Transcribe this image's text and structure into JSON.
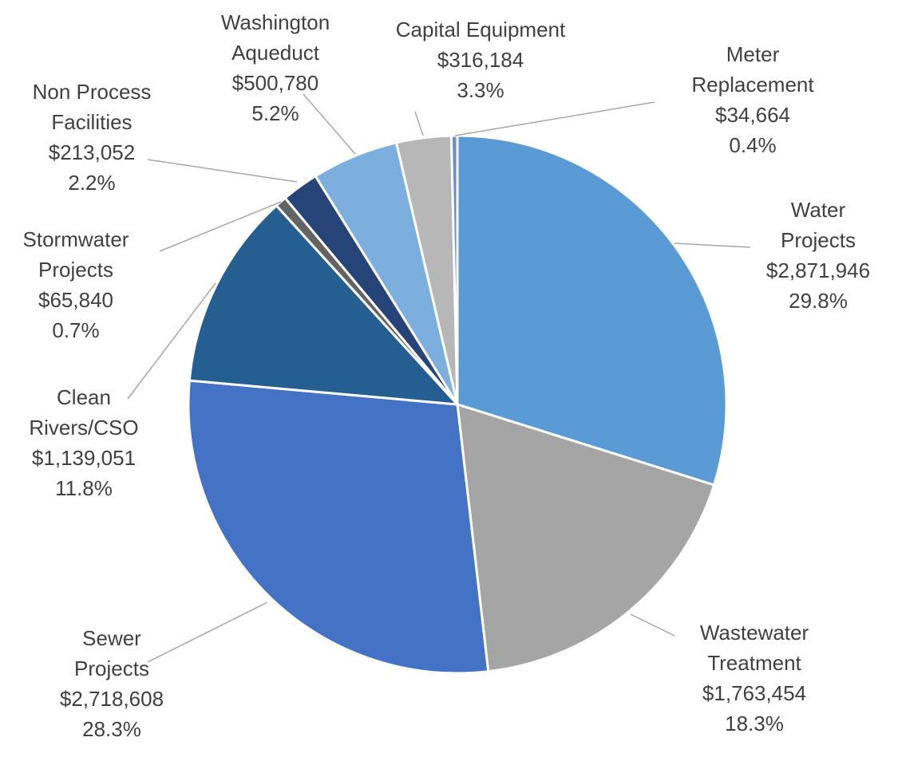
{
  "chart_data": {
    "type": "pie",
    "categories": [
      "Water Projects",
      "Wastewater Treatment",
      "Sewer Projects",
      "Clean Rivers/CSO",
      "Stormwater Projects",
      "Non Process Facilities",
      "Washington Aqueduct",
      "Capital Equipment",
      "Meter Replacement"
    ],
    "values": [
      2871946,
      1763454,
      2718608,
      1139051,
      65840,
      213052,
      500780,
      316184,
      34664
    ],
    "value_labels": [
      "$2,871,946",
      "$1,763,454",
      "$2,718,608",
      "$1,139,051",
      "$65,840",
      "$213,052",
      "$500,780",
      "$316,184",
      "$34,664"
    ],
    "percents": [
      29.8,
      18.3,
      28.3,
      11.8,
      0.7,
      2.2,
      5.2,
      3.3,
      0.4
    ],
    "percent_labels": [
      "29.8%",
      "18.3%",
      "28.3%",
      "11.8%",
      "0.7%",
      "2.2%",
      "5.2%",
      "3.3%",
      "0.4%"
    ],
    "colors": [
      "#5b9bd5",
      "#a5a5a5",
      "#4472c4",
      "#255e91",
      "#636363",
      "#264478",
      "#7cafdd",
      "#b7b7b7",
      "#698ed0"
    ]
  }
}
